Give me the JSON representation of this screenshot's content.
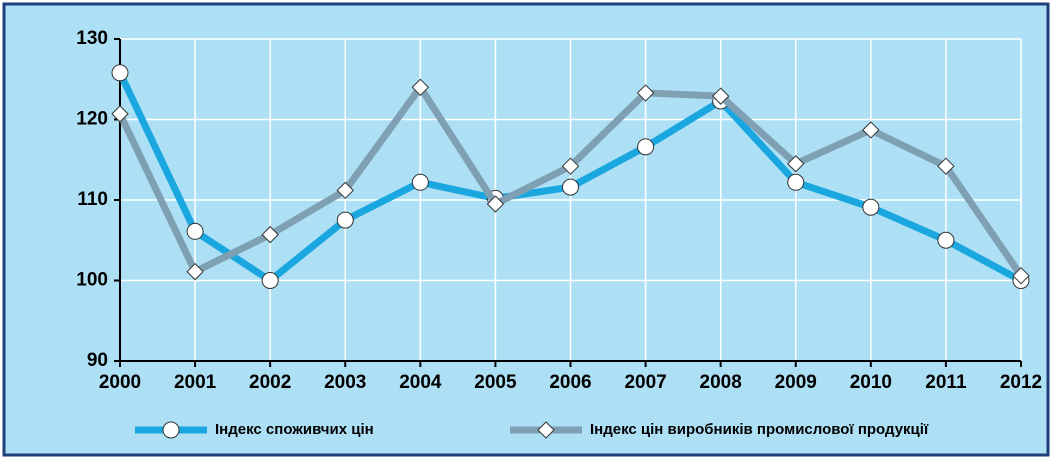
{
  "chart_data": {
    "type": "line",
    "x": [
      2000,
      2001,
      2002,
      2003,
      2004,
      2005,
      2006,
      2007,
      2008,
      2009,
      2010,
      2011,
      2012
    ],
    "xlim": [
      2000,
      2012
    ],
    "xticks": [
      2000,
      2001,
      2002,
      2003,
      2004,
      2005,
      2006,
      2007,
      2008,
      2009,
      2010,
      2011,
      2012
    ],
    "ylim": [
      90,
      130
    ],
    "yticks": [
      90,
      100,
      110,
      120,
      130
    ],
    "grid": true,
    "legend": "bottom",
    "series": [
      {
        "name": "Індекс споживчих цін",
        "color": "#1aa7e0",
        "marker": "circle",
        "values": [
          125.8,
          106.1,
          100,
          107.5,
          112.2,
          110.2,
          111.6,
          116.6,
          122.3,
          112.2,
          109.1,
          105.0,
          100
        ]
      },
      {
        "name": "Індекс цін виробників промислової продукції",
        "color": "#7f9fb2",
        "marker": "diamond",
        "values": [
          120.7,
          101.1,
          105.7,
          111.2,
          124.0,
          109.5,
          114.2,
          123.3,
          122.9,
          114.5,
          118.7,
          114.2,
          100.6
        ]
      }
    ]
  }
}
